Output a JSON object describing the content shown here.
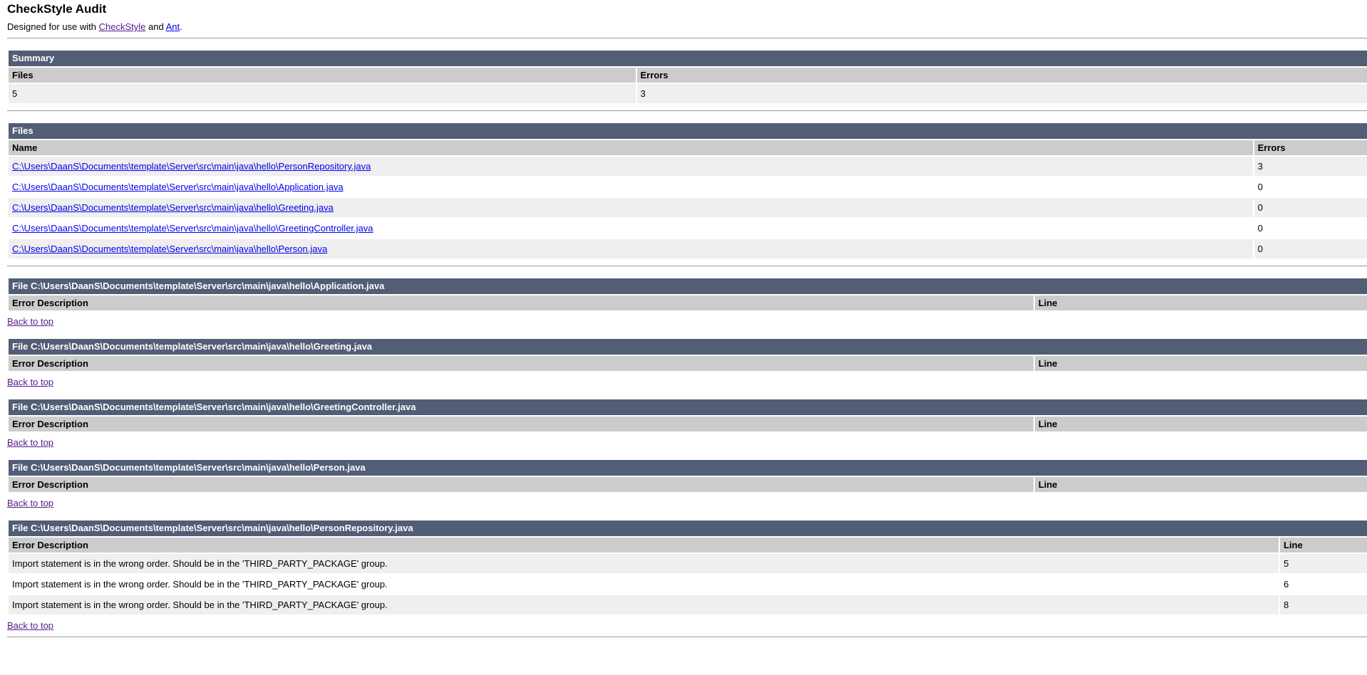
{
  "header": {
    "title": "CheckStyle Audit",
    "intro_prefix": "Designed for use with ",
    "intro_link1": "CheckStyle",
    "intro_and": " and ",
    "intro_link2": "Ant",
    "intro_period": "."
  },
  "colors": {
    "section_bar_bg": "#525D76",
    "section_bar_text": "#FFFFFF",
    "table_header_bg": "#CCCCCC",
    "row_alt_bg": "#EFEFEF",
    "row_bg": "#FFFFFF",
    "link": "#0000EE",
    "link_visited": "#551A8B",
    "rule": "#999999"
  },
  "summary": {
    "heading": "Summary",
    "col_files": "Files",
    "col_errors": "Errors",
    "files_count": "5",
    "errors_count": "3"
  },
  "files": {
    "heading": "Files",
    "col_name": "Name",
    "col_errors": "Errors",
    "rows": [
      {
        "name": "C:\\Users\\DaanS\\Documents\\template\\Server\\src\\main\\java\\hello\\PersonRepository.java",
        "errors": "3"
      },
      {
        "name": "C:\\Users\\DaanS\\Documents\\template\\Server\\src\\main\\java\\hello\\Application.java",
        "errors": "0"
      },
      {
        "name": "C:\\Users\\DaanS\\Documents\\template\\Server\\src\\main\\java\\hello\\Greeting.java",
        "errors": "0"
      },
      {
        "name": "C:\\Users\\DaanS\\Documents\\template\\Server\\src\\main\\java\\hello\\GreetingController.java",
        "errors": "0"
      },
      {
        "name": "C:\\Users\\DaanS\\Documents\\template\\Server\\src\\main\\java\\hello\\Person.java",
        "errors": "0"
      }
    ]
  },
  "sections": [
    {
      "heading": "File C:\\Users\\DaanS\\Documents\\template\\Server\\src\\main\\java\\hello\\Application.java",
      "col_error": "Error Description",
      "col_line": "Line",
      "rows": [],
      "back_label": "Back to top"
    },
    {
      "heading": "File C:\\Users\\DaanS\\Documents\\template\\Server\\src\\main\\java\\hello\\Greeting.java",
      "col_error": "Error Description",
      "col_line": "Line",
      "rows": [],
      "back_label": "Back to top"
    },
    {
      "heading": "File C:\\Users\\DaanS\\Documents\\template\\Server\\src\\main\\java\\hello\\GreetingController.java",
      "col_error": "Error Description",
      "col_line": "Line",
      "rows": [],
      "back_label": "Back to top"
    },
    {
      "heading": "File C:\\Users\\DaanS\\Documents\\template\\Server\\src\\main\\java\\hello\\Person.java",
      "col_error": "Error Description",
      "col_line": "Line",
      "rows": [],
      "back_label": "Back to top"
    },
    {
      "heading": "File C:\\Users\\DaanS\\Documents\\template\\Server\\src\\main\\java\\hello\\PersonRepository.java",
      "col_error": "Error Description",
      "col_line": "Line",
      "rows": [
        {
          "description": "Import statement is in the wrong order. Should be in the 'THIRD_PARTY_PACKAGE' group.",
          "line": "5"
        },
        {
          "description": "Import statement is in the wrong order. Should be in the 'THIRD_PARTY_PACKAGE' group.",
          "line": "6"
        },
        {
          "description": "Import statement is in the wrong order. Should be in the 'THIRD_PARTY_PACKAGE' group.",
          "line": "8"
        }
      ],
      "back_label": "Back to top"
    }
  ]
}
